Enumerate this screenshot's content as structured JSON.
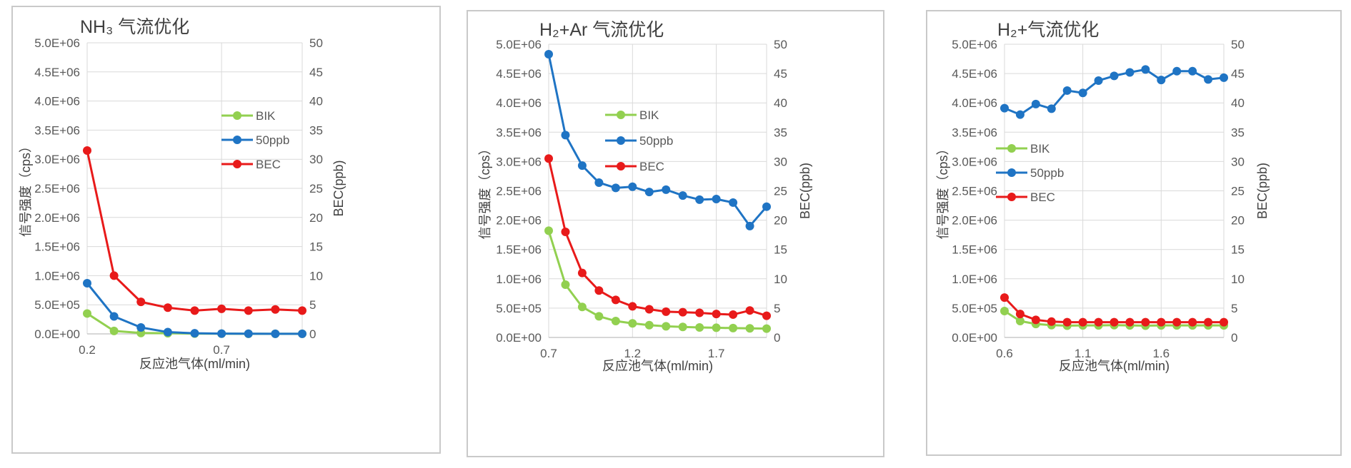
{
  "chart_data": [
    {
      "type": "line",
      "title": "NH₃ 气流优化",
      "xlabel": "反应池气体(ml/min)",
      "ylabel": "信号强度（cps）",
      "y2label": "BEC(ppb)",
      "x": [
        0.2,
        0.3,
        0.4,
        0.5,
        0.6,
        0.7,
        0.8,
        0.9,
        1.0
      ],
      "xlim": [
        0.2,
        1.0
      ],
      "xticks": [
        "0.2",
        "0.7"
      ],
      "xtick_values": [
        0.2,
        0.7
      ],
      "ylim": [
        0,
        5000000
      ],
      "yticks": [
        "0.0E+00",
        "5.0E+05",
        "1.0E+06",
        "1.5E+06",
        "2.0E+06",
        "2.5E+06",
        "3.0E+06",
        "3.5E+06",
        "4.0E+06",
        "4.5E+06",
        "5.0E+06"
      ],
      "y2lim": [
        0,
        50
      ],
      "y2ticks": [
        "0",
        "5",
        "10",
        "15",
        "20",
        "25",
        "30",
        "35",
        "40",
        "45",
        "50"
      ],
      "grid": true,
      "legend_position": "right",
      "series": [
        {
          "name": "BIK",
          "axis": "left",
          "color": "#92d050",
          "values": [
            350000,
            50000,
            15000,
            10000,
            5000,
            3000,
            2000,
            1000,
            1000
          ]
        },
        {
          "name": "50ppb",
          "axis": "left",
          "color": "#1f74c4",
          "values": [
            870000,
            300000,
            110000,
            30000,
            10000,
            5000,
            3000,
            2000,
            2000
          ]
        },
        {
          "name": "BEC",
          "axis": "right",
          "color": "#e81a1a",
          "values": [
            31.5,
            10,
            5.5,
            4.5,
            4,
            4.3,
            4,
            4.2,
            4
          ]
        }
      ]
    },
    {
      "type": "line",
      "title": "H₂+Ar 气流优化",
      "xlabel": "反应池气体(ml/min)",
      "ylabel": "信号强度（cps）",
      "y2label": "BEC(ppb)",
      "x": [
        0.7,
        0.8,
        0.9,
        1.0,
        1.1,
        1.2,
        1.3,
        1.4,
        1.5,
        1.6,
        1.7,
        1.8,
        1.9,
        2.0
      ],
      "xlim": [
        0.7,
        2.0
      ],
      "xticks": [
        "0.7",
        "1.2",
        "1.7"
      ],
      "xtick_values": [
        0.7,
        1.2,
        1.7
      ],
      "ylim": [
        0,
        5000000
      ],
      "yticks": [
        "0.0E+00",
        "5.0E+05",
        "1.0E+06",
        "1.5E+06",
        "2.0E+06",
        "2.5E+06",
        "3.0E+06",
        "3.5E+06",
        "4.0E+06",
        "4.5E+06",
        "5.0E+06"
      ],
      "y2lim": [
        0,
        50
      ],
      "y2ticks": [
        "0",
        "5",
        "10",
        "15",
        "20",
        "25",
        "30",
        "35",
        "40",
        "45",
        "50"
      ],
      "grid": true,
      "legend_position": "right",
      "series": [
        {
          "name": "BIK",
          "axis": "left",
          "color": "#92d050",
          "values": [
            1820000,
            900000,
            520000,
            360000,
            280000,
            240000,
            210000,
            190000,
            180000,
            170000,
            165000,
            160000,
            155000,
            150000
          ]
        },
        {
          "name": "50ppb",
          "axis": "left",
          "color": "#1f74c4",
          "values": [
            4830000,
            3450000,
            2930000,
            2640000,
            2550000,
            2570000,
            2480000,
            2520000,
            2420000,
            2350000,
            2360000,
            2300000,
            1900000,
            2230000
          ]
        },
        {
          "name": "BEC",
          "axis": "right",
          "color": "#e81a1a",
          "values": [
            30.5,
            18,
            11,
            8,
            6.4,
            5.3,
            4.8,
            4.4,
            4.3,
            4.2,
            4,
            3.9,
            4.6,
            3.7
          ]
        }
      ]
    },
    {
      "type": "line",
      "title": "H₂+气流优化",
      "xlabel": "反应池气体(ml/min)",
      "ylabel": "信号强度（cps）",
      "y2label": "BEC(ppb)",
      "x": [
        0.6,
        0.7,
        0.8,
        0.9,
        1.0,
        1.1,
        1.2,
        1.3,
        1.4,
        1.5,
        1.6,
        1.7,
        1.8,
        1.9,
        2.0
      ],
      "xlim": [
        0.6,
        2.0
      ],
      "xticks": [
        "0.6",
        "1.1",
        "1.6"
      ],
      "xtick_values": [
        0.6,
        1.1,
        1.6
      ],
      "ylim": [
        0,
        5000000
      ],
      "yticks": [
        "0.0E+00",
        "5.0E+05",
        "1.0E+06",
        "1.5E+06",
        "2.0E+06",
        "2.5E+06",
        "3.0E+06",
        "3.5E+06",
        "4.0E+06",
        "4.5E+06",
        "5.0E+06"
      ],
      "y2lim": [
        0,
        50
      ],
      "y2ticks": [
        "0",
        "5",
        "10",
        "15",
        "20",
        "25",
        "30",
        "35",
        "40",
        "45",
        "50"
      ],
      "grid": true,
      "legend_position": "right",
      "series": [
        {
          "name": "BIK",
          "axis": "left",
          "color": "#92d050",
          "values": [
            450000,
            280000,
            230000,
            210000,
            200000,
            205000,
            205000,
            210000,
            205000,
            200000,
            205000,
            205000,
            205000,
            205000,
            205000
          ]
        },
        {
          "name": "50ppb",
          "axis": "left",
          "color": "#1f74c4",
          "values": [
            3910000,
            3800000,
            3980000,
            3900000,
            4210000,
            4170000,
            4380000,
            4460000,
            4520000,
            4570000,
            4390000,
            4540000,
            4540000,
            4400000,
            4430000
          ]
        },
        {
          "name": "BEC",
          "axis": "right",
          "color": "#e81a1a",
          "values": [
            6.8,
            4,
            3,
            2.7,
            2.6,
            2.6,
            2.6,
            2.6,
            2.6,
            2.6,
            2.6,
            2.6,
            2.6,
            2.6,
            2.6
          ]
        }
      ]
    }
  ]
}
